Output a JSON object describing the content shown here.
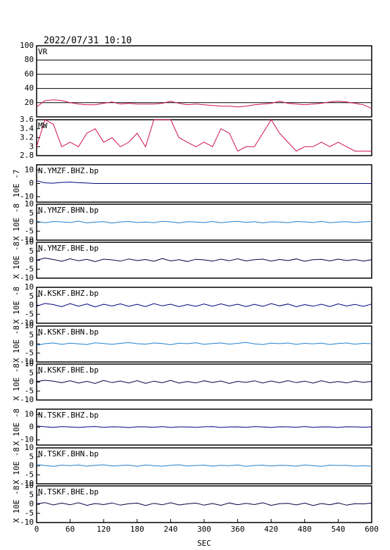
{
  "chart_data": {
    "type": "line",
    "title": "2022/07/31 10:10",
    "xlabel": "SEC",
    "xlim": [
      0,
      600
    ],
    "xticks": [
      0,
      60,
      120,
      180,
      240,
      300,
      360,
      420,
      480,
      540,
      600
    ],
    "x": [
      0,
      15,
      30,
      45,
      60,
      75,
      90,
      105,
      120,
      135,
      150,
      165,
      180,
      195,
      210,
      225,
      240,
      255,
      270,
      285,
      300,
      315,
      330,
      345,
      360,
      375,
      390,
      405,
      420,
      435,
      450,
      465,
      480,
      495,
      510,
      525,
      540,
      555,
      570,
      585,
      600
    ],
    "panels": [
      {
        "label": "VR",
        "ylim": [
          0,
          100
        ],
        "yticks": [
          20,
          40,
          60,
          80,
          100
        ],
        "grid": true,
        "color": "#d0104c",
        "values": [
          14,
          23,
          24,
          23,
          20,
          18,
          17,
          17,
          19,
          21,
          18,
          19,
          18,
          18,
          18,
          19,
          22,
          19,
          17,
          18,
          17,
          16,
          15,
          15,
          14,
          15,
          17,
          18,
          19,
          22,
          19,
          18,
          17,
          18,
          19,
          21,
          22,
          21,
          19,
          17,
          12
        ]
      },
      {
        "label": "MW",
        "ylim": [
          2.8,
          3.6
        ],
        "yticks": [
          2.8,
          3.0,
          3.2,
          3.4,
          3.6
        ],
        "grid": false,
        "color": "#d0104c",
        "values": [
          3.0,
          3.6,
          3.5,
          3.0,
          3.1,
          3.0,
          3.3,
          3.4,
          3.1,
          3.2,
          3.0,
          3.1,
          3.3,
          3.0,
          3.6,
          3.6,
          3.6,
          3.2,
          3.1,
          3.0,
          3.1,
          3.0,
          3.4,
          3.3,
          2.9,
          3.0,
          3.0,
          3.3,
          3.6,
          3.3,
          3.1,
          2.9,
          3.0,
          3.0,
          3.1,
          3.0,
          3.1,
          3.0,
          2.9,
          2.9,
          2.9
        ]
      },
      {
        "label": "N.YMZF.BHZ.bp",
        "ylabel": "10E -7",
        "ylim": [
          -14,
          14
        ],
        "yticks": [
          -10,
          0,
          10
        ],
        "grid": false,
        "color": "#000080",
        "values": [
          2,
          0.5,
          0.2,
          0.8,
          1,
          0.6,
          0.3,
          0,
          0,
          0,
          0,
          0,
          0,
          0,
          0,
          0,
          0,
          0,
          0,
          0,
          0,
          0,
          0,
          0,
          0,
          0,
          0,
          0,
          0,
          0,
          0,
          0,
          0,
          0,
          0,
          0,
          0,
          0,
          0,
          0,
          0
        ]
      },
      {
        "label": "N.YMZF.BHN.bp",
        "ylabel": "X 10E -8",
        "ylim": [
          -10,
          10
        ],
        "yticks": [
          -10,
          -5,
          0,
          5,
          10
        ],
        "grid": false,
        "color": "#2080d0",
        "values": [
          0.5,
          -0.3,
          0.4,
          0.2,
          -0.2,
          0.6,
          -0.4,
          0.1,
          0.3,
          -0.5,
          0.2,
          0.4,
          -0.2,
          0.1,
          -0.3,
          0.5,
          0.2,
          -0.4,
          0.3,
          0.1,
          -0.2,
          0.4,
          -0.3,
          0.2,
          0.5,
          -0.1,
          0.3,
          -0.4,
          0.2,
          0.1,
          -0.3,
          0.4,
          0.2,
          -0.2,
          0.5,
          -0.3,
          0.1,
          0.3,
          -0.2,
          0.2,
          0.4
        ]
      },
      {
        "label": "N.YMZF.BHE.bp",
        "ylabel": "X 10E -8",
        "ylim": [
          -10,
          10
        ],
        "yticks": [
          -10,
          -5,
          0,
          5,
          10
        ],
        "grid": false,
        "color": "#000040",
        "values": [
          0,
          1.2,
          0.4,
          -0.6,
          0.8,
          -0.3,
          0.5,
          -0.8,
          0.6,
          0.2,
          -0.5,
          0.7,
          -0.2,
          0.4,
          -0.6,
          0.9,
          -0.4,
          0.3,
          -0.7,
          0.5,
          0.2,
          -0.5,
          0.6,
          -0.3,
          0.8,
          -0.4,
          0.3,
          0.6,
          -0.5,
          0.4,
          -0.2,
          0.7,
          -0.6,
          0.3,
          0.5,
          -0.4,
          0.6,
          -0.2,
          0.4,
          -0.5,
          0.3
        ]
      },
      {
        "label": "N.KSKF.BHZ.bp",
        "ylabel": "X 10E -8",
        "ylim": [
          -10,
          10
        ],
        "yticks": [
          -10,
          -5,
          0,
          5,
          10
        ],
        "grid": false,
        "color": "#000080",
        "values": [
          -0.5,
          1,
          0.4,
          -0.8,
          0.9,
          -0.5,
          0.7,
          -0.9,
          0.6,
          -0.4,
          0.8,
          -0.6,
          0.5,
          -0.7,
          0.9,
          -0.3,
          0.6,
          -0.8,
          0.4,
          -0.6,
          0.7,
          -0.5,
          0.8,
          -0.4,
          0.6,
          -0.7,
          0.5,
          -0.6,
          0.9,
          -0.3,
          0.7,
          -0.8,
          0.4,
          -0.5,
          0.6,
          -0.7,
          0.8,
          -0.4,
          0.5,
          -0.6,
          0.7
        ]
      },
      {
        "label": "N.KSKF.BHN.bp",
        "ylabel": "X 10E -8",
        "ylim": [
          -10,
          10
        ],
        "yticks": [
          -10,
          -5,
          0,
          5,
          10
        ],
        "grid": false,
        "color": "#2080d0",
        "values": [
          -0.8,
          0.2,
          0.6,
          -0.2,
          0.5,
          0.1,
          -0.3,
          0.7,
          0.3,
          -0.2,
          0.4,
          0.8,
          0.2,
          -0.1,
          0.6,
          0.3,
          -0.4,
          0.5,
          0.2,
          0.7,
          -0.2,
          0.3,
          0.6,
          -0.1,
          0.4,
          0.9,
          0.1,
          -0.3,
          0.5,
          0.2,
          0.6,
          -0.2,
          0.4,
          0.1,
          0.5,
          -0.3,
          0.3,
          0.6,
          -0.1,
          0.4,
          0.2
        ]
      },
      {
        "label": "N.KSKF.BHE.bp",
        "ylabel": "X 10E -8",
        "ylim": [
          -10,
          10
        ],
        "yticks": [
          -10,
          -5,
          0,
          5,
          10
        ],
        "grid": false,
        "color": "#000040",
        "values": [
          0.3,
          1,
          0.5,
          -0.4,
          0.7,
          -0.6,
          0.4,
          -0.8,
          0.9,
          -0.3,
          0.6,
          -0.5,
          0.8,
          -0.7,
          0.5,
          -0.4,
          0.9,
          -0.6,
          0.3,
          -0.5,
          0.7,
          -0.3,
          0.6,
          -0.8,
          0.4,
          -0.2,
          0.7,
          -0.5,
          0.6,
          -0.4,
          0.8,
          -0.3,
          0.5,
          -0.6,
          0.7,
          -0.4,
          0.3,
          -0.5,
          0.6,
          -0.2,
          0.4
        ]
      },
      {
        "label": "N.TSKF.BHZ.bp",
        "ylabel": "X 10E -8",
        "ylim": [
          -14,
          14
        ],
        "yticks": [
          -10,
          0,
          10
        ],
        "grid": false,
        "color": "#000080",
        "values": [
          1,
          0.3,
          -0.2,
          0.4,
          0.1,
          -0.3,
          0.2,
          0.5,
          -0.2,
          0.3,
          0.1,
          -0.4,
          0.3,
          0.2,
          -0.1,
          0.4,
          -0.3,
          0.2,
          0.1,
          -0.2,
          0.3,
          0.4,
          -0.3,
          0.1,
          0.2,
          -0.2,
          0.4,
          0.1,
          -0.3,
          0.3,
          0.2,
          -0.1,
          0.5,
          -0.2,
          0.2,
          0.1,
          -0.3,
          0.3,
          0.2,
          -0.1,
          0.2
        ]
      },
      {
        "label": "N.TSKF.BHN.bp",
        "ylabel": "X 10E -8",
        "ylim": [
          -10,
          10
        ],
        "yticks": [
          -10,
          -5,
          0,
          5,
          10
        ],
        "grid": false,
        "color": "#2080d0",
        "values": [
          0.8,
          0.2,
          -0.3,
          0.4,
          0.1,
          0.5,
          -0.2,
          0.3,
          0.6,
          -0.1,
          0.2,
          0.4,
          -0.3,
          0.5,
          0.1,
          -0.2,
          0.3,
          0.6,
          -0.1,
          0.2,
          0.4,
          -0.2,
          0.3,
          0.1,
          0.5,
          -0.3,
          0.2,
          0.4,
          -0.1,
          0.3,
          0.2,
          -0.2,
          0.5,
          0.1,
          -0.3,
          0.4,
          0.2,
          0.3,
          -0.2,
          0.1,
          -0.3
        ]
      },
      {
        "label": "N.TSKF.BHE.bp",
        "ylabel": "X 10E -8",
        "ylim": [
          -10,
          10
        ],
        "yticks": [
          -10,
          -5,
          0,
          5,
          10
        ],
        "grid": false,
        "color": "#000040",
        "values": [
          0.2,
          0.9,
          -0.4,
          0.6,
          -0.3,
          0.8,
          -0.6,
          0.4,
          -0.2,
          0.7,
          -0.5,
          0.3,
          0.6,
          -0.7,
          0.5,
          -0.3,
          0.8,
          -0.4,
          0.2,
          0.6,
          -0.5,
          0.4,
          -0.6,
          0.7,
          -0.3,
          0.5,
          -0.2,
          0.8,
          -0.6,
          0.3,
          0.5,
          -0.4,
          0.6,
          -0.7,
          0.4,
          -0.3,
          0.7,
          -0.5,
          0.3,
          0.2,
          0.6
        ]
      }
    ]
  }
}
